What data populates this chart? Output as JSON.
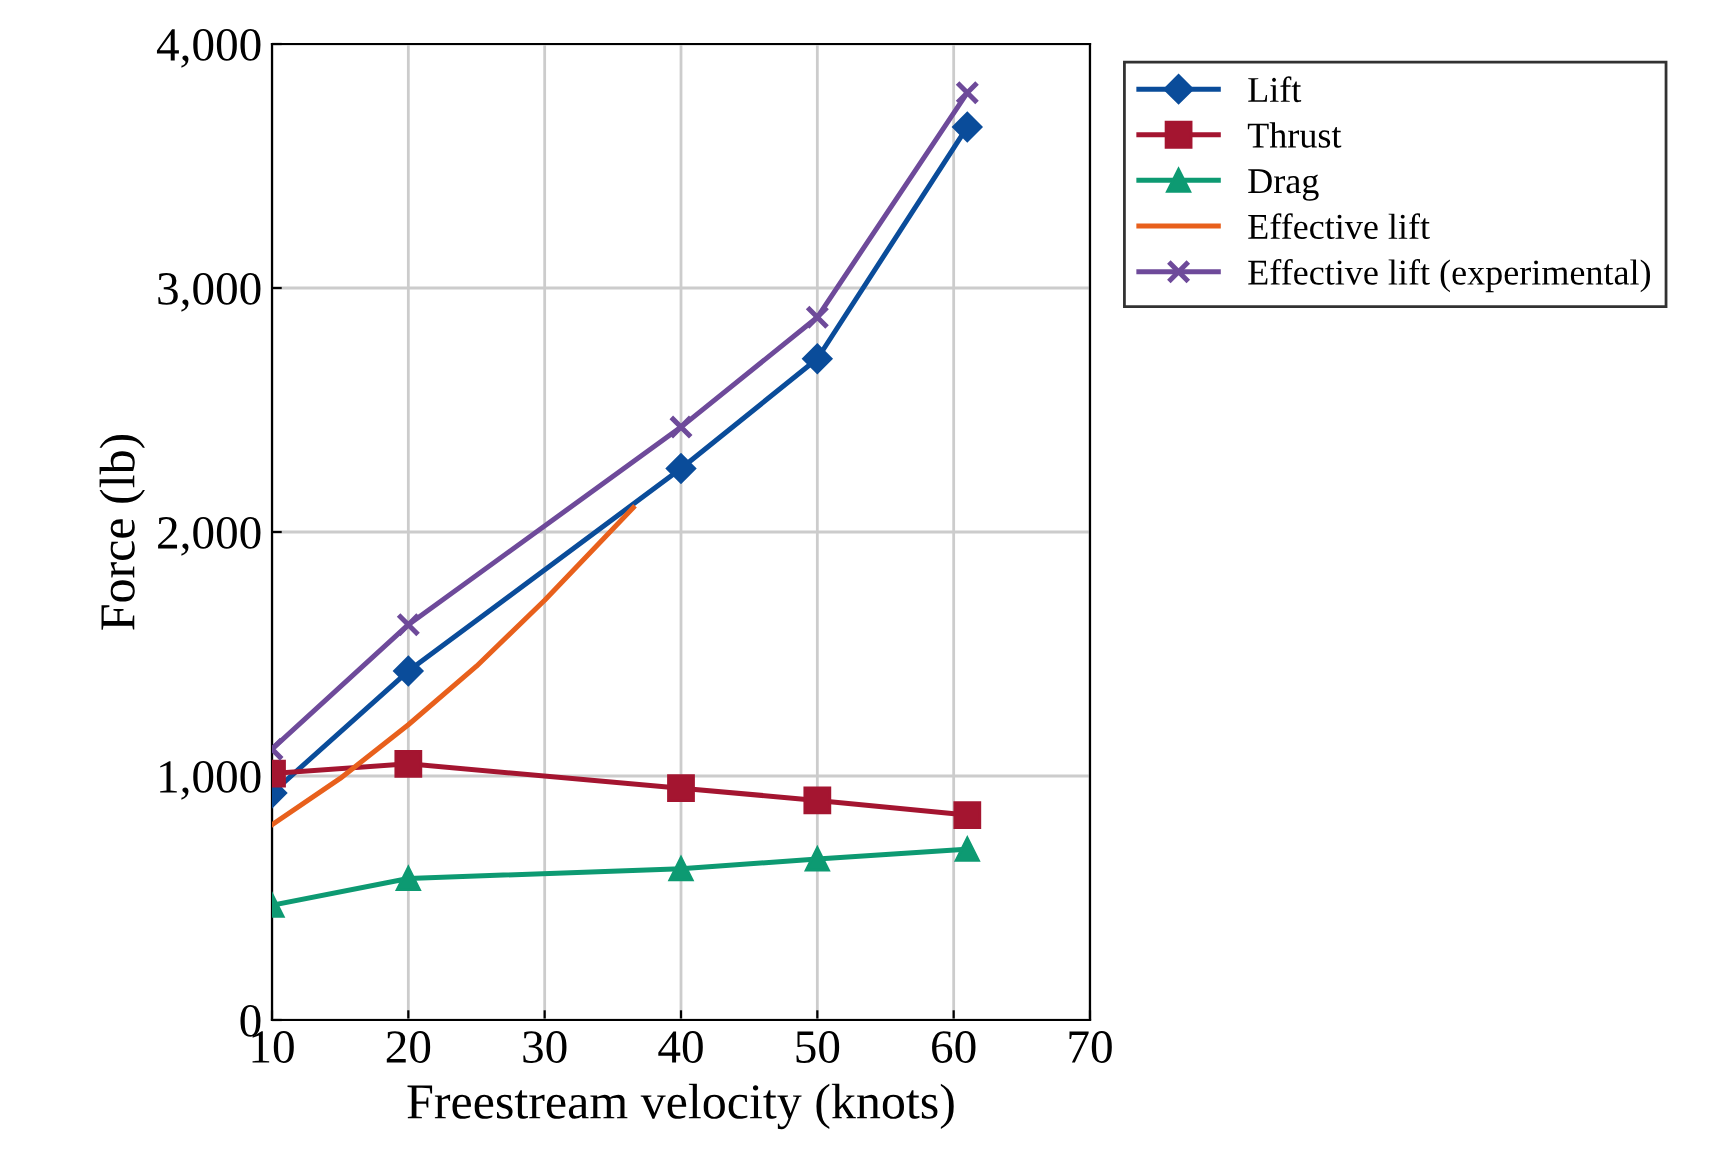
{
  "chart_data": {
    "type": "line",
    "xlabel": "Freestream velocity (knots)",
    "ylabel": "Force (lb)",
    "xlim": [
      10,
      70
    ],
    "xticks": [
      10,
      20,
      30,
      40,
      50,
      60,
      70
    ],
    "ylim": [
      0,
      4000
    ],
    "yticks": [
      0,
      {
        "value": 1000,
        "label": "1,000"
      },
      {
        "value": 2000,
        "label": "2,000"
      },
      {
        "value": 3000,
        "label": "3,000"
      },
      {
        "value": 4000,
        "label": "4,000"
      }
    ],
    "grid": true,
    "legend": "right",
    "line_style": "solid",
    "series": [
      {
        "name": "Lift",
        "color": "#0a4c9a",
        "marker": "diamond",
        "x": [
          10,
          20,
          40,
          50,
          61
        ],
        "values": [
          930,
          1430,
          2260,
          2710,
          3660
        ]
      },
      {
        "name": "Thrust",
        "color": "#a41530",
        "marker": "square",
        "x": [
          10,
          20,
          40,
          50,
          61
        ],
        "values": [
          1010,
          1050,
          950,
          900,
          840
        ]
      },
      {
        "name": "Drag",
        "color": "#0d9a72",
        "marker": "triangle",
        "x": [
          10,
          20,
          40,
          50,
          61
        ],
        "values": [
          470,
          580,
          620,
          660,
          700
        ]
      },
      {
        "name": "Effective lift",
        "color": "#e8601c",
        "marker": "none",
        "x": [
          10,
          15,
          20,
          25,
          30,
          36.5
        ],
        "values": [
          800,
          990,
          1210,
          1450,
          1720,
          2100
        ]
      },
      {
        "name": "Effective lift (experimental)",
        "color": "#6e4a9a",
        "marker": "cross",
        "x": [
          10,
          20,
          40,
          50,
          61
        ],
        "values": [
          1110,
          1620,
          2430,
          2880,
          3800
        ]
      }
    ]
  }
}
